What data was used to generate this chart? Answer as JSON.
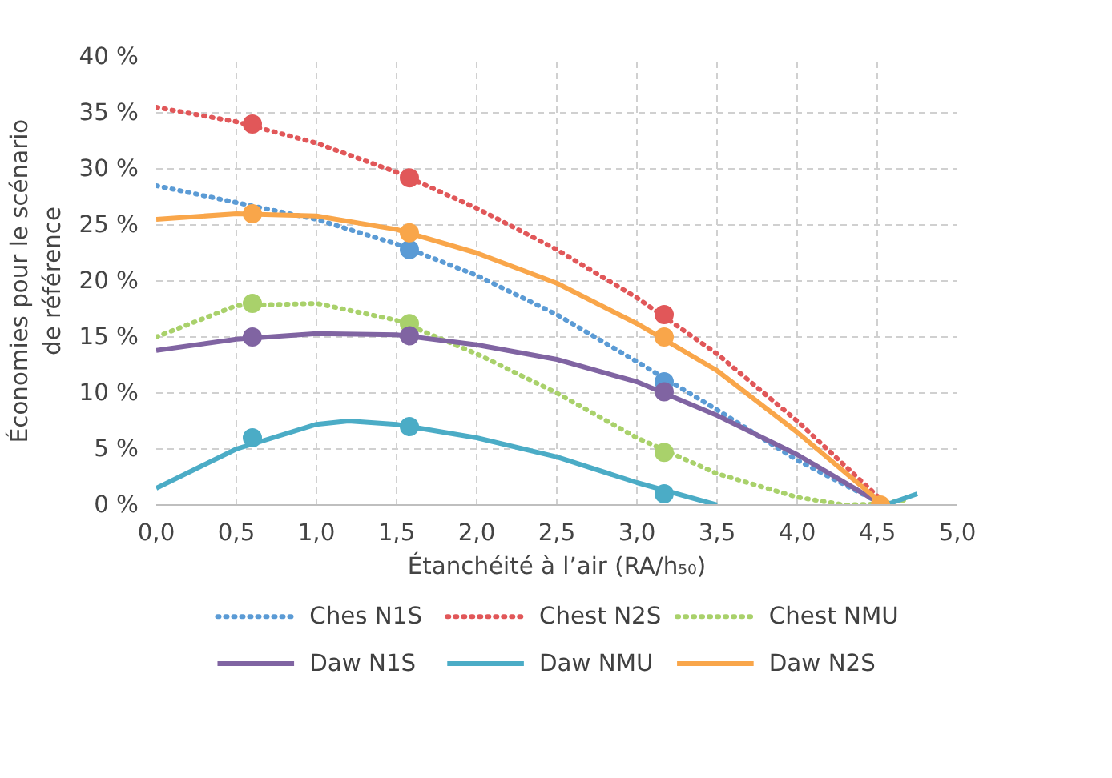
{
  "chart_data": {
    "type": "line",
    "xlabel": "Étanchéité à l’air (RA/h₅₀)",
    "ylabel": "Économies pour le scénario\nde référence",
    "xlim": [
      0,
      5
    ],
    "ylim": [
      0,
      40
    ],
    "xticks": [
      {
        "value": 0,
        "label": "0,0"
      },
      {
        "value": 0.5,
        "label": "0,5"
      },
      {
        "value": 1,
        "label": "1,0"
      },
      {
        "value": 1.5,
        "label": "1,5"
      },
      {
        "value": 2,
        "label": "2,0"
      },
      {
        "value": 2.5,
        "label": "2,5"
      },
      {
        "value": 3,
        "label": "3,0"
      },
      {
        "value": 3.5,
        "label": "3,5"
      },
      {
        "value": 4,
        "label": "4,0"
      },
      {
        "value": 4.5,
        "label": "4,5"
      },
      {
        "value": 5,
        "label": "5,0"
      }
    ],
    "yticks": [
      {
        "value": 0,
        "label": "0 %"
      },
      {
        "value": 5,
        "label": "5 %"
      },
      {
        "value": 10,
        "label": "10 %"
      },
      {
        "value": 15,
        "label": "15 %"
      },
      {
        "value": 20,
        "label": "20 %"
      },
      {
        "value": 25,
        "label": "25 %"
      },
      {
        "value": 30,
        "label": "30 %"
      },
      {
        "value": 35,
        "label": "35 %"
      },
      {
        "value": 40,
        "label": "40 %"
      }
    ],
    "grid": true,
    "legend": "bottom",
    "marker": "none",
    "series": [
      {
        "name": "Ches N1S",
        "color": "#5b9bd5",
        "line_style": "dotted",
        "x": [
          0,
          0.5,
          1,
          1.5,
          2,
          2.5,
          3,
          3.5,
          4,
          4.5,
          4.58
        ],
        "values": [
          28.5,
          27,
          25.5,
          23.3,
          20.5,
          17,
          12.8,
          8.5,
          4,
          0.3,
          0
        ]
      },
      {
        "name": "Chest N2S",
        "color": "#e15759",
        "line_style": "dotted",
        "x": [
          0,
          0.5,
          1,
          1.5,
          2,
          2.5,
          3,
          3.5,
          4,
          4.5,
          4.55
        ],
        "values": [
          35.5,
          34.2,
          32.3,
          29.7,
          26.5,
          22.8,
          18.5,
          13.5,
          7.5,
          0.8,
          0
        ]
      },
      {
        "name": "Chest NMU",
        "color": "#a9d16b",
        "line_style": "dotted",
        "x": [
          0,
          0.5,
          1,
          1.5,
          2,
          2.5,
          3,
          3.5,
          4,
          4.3,
          4.5,
          4.7
        ],
        "values": [
          15,
          17.8,
          18,
          16.5,
          13.5,
          10,
          6,
          2.8,
          0.7,
          0,
          0.1,
          0.5
        ]
      },
      {
        "name": "Daw N1S",
        "color": "#8064a2",
        "line_style": "solid",
        "x": [
          0,
          0.5,
          1,
          1.5,
          2,
          2.5,
          3,
          3.5,
          4,
          4.5,
          4.55
        ],
        "values": [
          13.8,
          14.8,
          15.3,
          15.2,
          14.3,
          13,
          11,
          8,
          4.5,
          0.3,
          0
        ]
      },
      {
        "name": "Daw NMU",
        "color": "#4bacc6",
        "line_style": "solid",
        "x": [
          0,
          0.5,
          1,
          1.2,
          1.5,
          2,
          2.5,
          3,
          3.5,
          4,
          4.55,
          4.75
        ],
        "values": [
          1.5,
          5,
          7.2,
          7.5,
          7.2,
          6,
          4.3,
          2,
          0,
          null,
          0,
          1
        ]
      },
      {
        "name": "Daw N2S",
        "color": "#f9a64a",
        "line_style": "solid",
        "x": [
          0,
          0.5,
          1,
          1.5,
          2,
          2.5,
          3,
          3.5,
          4,
          4.5,
          4.55
        ],
        "values": [
          25.5,
          26,
          25.8,
          24.6,
          22.5,
          19.8,
          16.2,
          12,
          6.5,
          0.5,
          0
        ]
      },
      {
        "type": "scatter",
        "marker": "circle",
        "color": "#5b9bd5",
        "x": [
          1.58,
          3.17
        ],
        "values": [
          22.8,
          11
        ]
      },
      {
        "type": "scatter",
        "marker": "circle",
        "color": "#e15759",
        "x": [
          0.6,
          1.58,
          3.17
        ],
        "values": [
          34,
          29.2,
          17
        ]
      },
      {
        "type": "scatter",
        "marker": "circle",
        "color": "#a9d16b",
        "x": [
          0.6,
          1.58,
          3.17
        ],
        "values": [
          18,
          16.2,
          4.7
        ]
      },
      {
        "type": "scatter",
        "marker": "circle",
        "color": "#8064a2",
        "x": [
          0.6,
          1.58,
          3.17
        ],
        "values": [
          15,
          15.1,
          10.1
        ]
      },
      {
        "type": "scatter",
        "marker": "circle",
        "color": "#4bacc6",
        "x": [
          0.6,
          1.58,
          3.17
        ],
        "values": [
          6,
          7,
          1
        ]
      },
      {
        "type": "scatter",
        "marker": "circle",
        "color": "#f9a64a",
        "x": [
          0.6,
          1.58,
          3.17,
          4.52
        ],
        "values": [
          26,
          24.3,
          15,
          0
        ]
      }
    ]
  }
}
